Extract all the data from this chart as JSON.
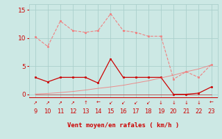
{
  "x_ticks": [
    9,
    10,
    11,
    12,
    13,
    14,
    15,
    16,
    17,
    18,
    19,
    20,
    21,
    22,
    23
  ],
  "rafales": [
    10.2,
    8.5,
    13.0,
    11.3,
    11.0,
    11.3,
    14.3,
    11.3,
    11.0,
    10.3,
    10.3,
    2.7,
    4.0,
    3.0,
    5.3
  ],
  "vent_moyen": [
    3.0,
    2.2,
    3.0,
    3.0,
    3.0,
    2.0,
    6.3,
    3.0,
    3.0,
    3.0,
    3.0,
    0.0,
    0.0,
    0.2,
    1.3
  ],
  "diag_line": [
    0.05,
    0.15,
    0.3,
    0.5,
    0.75,
    1.05,
    1.3,
    1.6,
    2.0,
    2.4,
    2.9,
    3.4,
    4.0,
    4.5,
    5.2
  ],
  "flat_line": [
    0.0,
    0.0,
    0.0,
    0.0,
    0.0,
    0.0,
    0.0,
    0.0,
    0.0,
    0.0,
    0.0,
    0.0,
    0.0,
    0.0,
    0.0
  ],
  "y_ticks": [
    0,
    5,
    10,
    15
  ],
  "xlabel": "Vent moyen/en rafales ( km/h )",
  "xlim": [
    8.5,
    23.5
  ],
  "ylim": [
    -0.5,
    16.0
  ],
  "bg_color": "#cce8e4",
  "grid_color": "#aacfcc",
  "rafales_color": "#f08080",
  "vent_moyen_color": "#cc0000",
  "diag_color": "#f08080",
  "tick_color": "#cc0000",
  "label_color": "#cc0000",
  "arrow_symbols": [
    "↗",
    "↗",
    "↗",
    "↗",
    "↑",
    "←",
    "↙",
    "↙",
    "↙",
    "↙",
    "↓",
    "↓",
    "↓",
    "↓",
    "←"
  ]
}
